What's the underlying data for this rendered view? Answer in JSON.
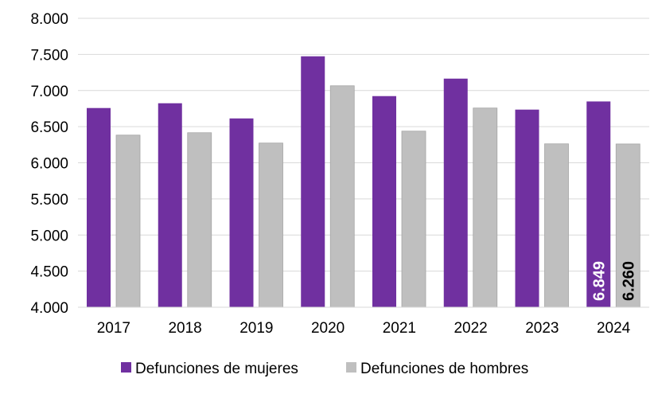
{
  "chart_data": {
    "type": "bar",
    "categories": [
      "2017",
      "2018",
      "2019",
      "2020",
      "2021",
      "2022",
      "2023",
      "2024"
    ],
    "series": [
      {
        "name": "Defunciones de mujeres",
        "color": "#7030A0",
        "values": [
          6758,
          6824,
          6614,
          7474,
          6923,
          7165,
          6736,
          6849
        ]
      },
      {
        "name": "Defunciones de hombres",
        "color": "#BFBFBF",
        "values": [
          6383,
          6416,
          6273,
          7066,
          6438,
          6758,
          6262,
          6260
        ]
      }
    ],
    "data_labels": [
      {
        "category": "2024",
        "series": 0,
        "text": "6.849"
      },
      {
        "category": "2024",
        "series": 1,
        "text": "6.260"
      }
    ],
    "yticks": [
      "4.000",
      "4.500",
      "5.000",
      "5.500",
      "6.000",
      "6.500",
      "7.000",
      "7.500",
      "8.000"
    ],
    "ylim": [
      4000,
      8000
    ],
    "grid": true,
    "legend": "bottom",
    "title": "",
    "xlabel": "",
    "ylabel": ""
  }
}
